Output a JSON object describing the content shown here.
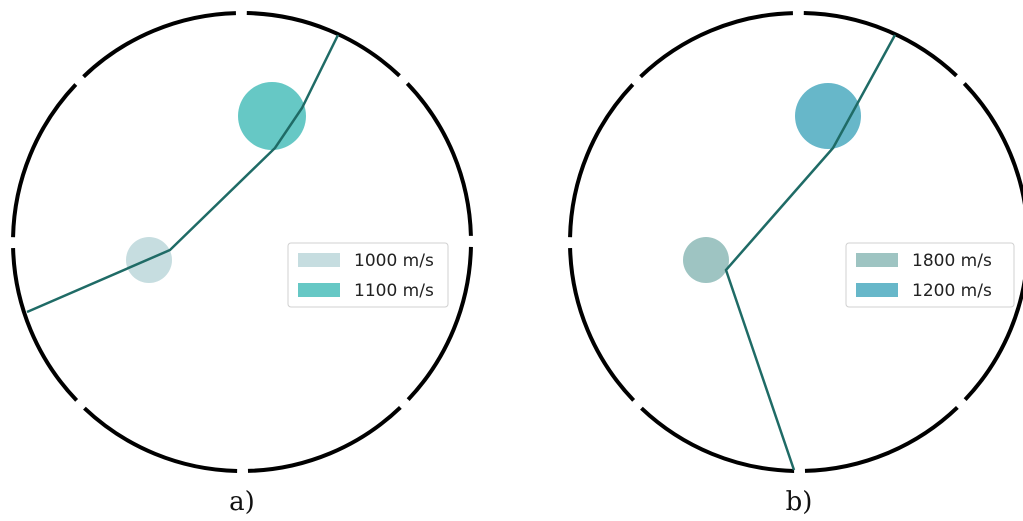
{
  "panels": [
    {
      "caption": "a)",
      "colors": {
        "boundary": "#000000",
        "ray": "#1f6b66",
        "small_inclusion": "#c6dde0",
        "large_inclusion": "#66c8c5"
      },
      "legend": [
        {
          "label": "1000 m/s",
          "color": "#c6dde0"
        },
        {
          "label": "1100 m/s",
          "color": "#66c8c5"
        }
      ]
    },
    {
      "caption": "b)",
      "colors": {
        "boundary": "#000000",
        "ray": "#1f6b66",
        "small_inclusion": "#9ec4c2",
        "large_inclusion": "#67b7c9"
      },
      "legend": [
        {
          "label": "1800 m/s",
          "color": "#9ec4c2"
        },
        {
          "label": "1200 m/s",
          "color": "#67b7c9"
        }
      ]
    }
  ]
}
